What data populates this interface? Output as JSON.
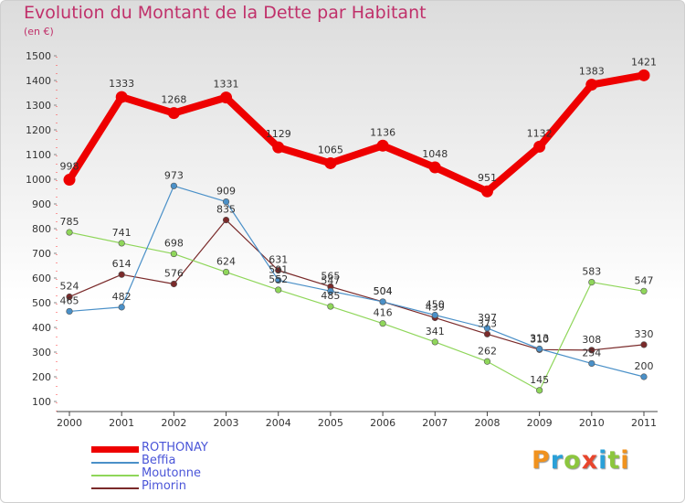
{
  "title": "Evolution du Montant de la Dette par Habitant",
  "subtitle": "(en €)",
  "logo": {
    "text": "Proxiti",
    "colors": [
      "#f0921e",
      "#2aa0d8",
      "#8cc63e",
      "#e8452c",
      "#2aa0d8",
      "#8cc63e",
      "#f0921e"
    ]
  },
  "chart_data": {
    "type": "line",
    "title": "Evolution du Montant de la Dette par Habitant",
    "subtitle": "(en €)",
    "xlabel": "",
    "ylabel": "",
    "categories": [
      "2000",
      "2001",
      "2002",
      "2003",
      "2004",
      "2005",
      "2006",
      "2007",
      "2008",
      "2009",
      "2010",
      "2011"
    ],
    "ylim": [
      100,
      1500
    ],
    "yticks": [
      100,
      200,
      300,
      400,
      500,
      600,
      700,
      800,
      900,
      1000,
      1100,
      1200,
      1300,
      1400,
      1500
    ],
    "grid": false,
    "legend": "bottom-left",
    "series": [
      {
        "name": "ROTHONAY",
        "color": "#ee0000",
        "values": [
          998,
          1333,
          1268,
          1331,
          1129,
          1065,
          1136,
          1048,
          951,
          1132,
          1383,
          1421
        ]
      },
      {
        "name": "Beffia",
        "color": "#4a90c8",
        "values": [
          465,
          482,
          973,
          909,
          591,
          547,
          504,
          450,
          397,
          313,
          254,
          200
        ]
      },
      {
        "name": "Moutonne",
        "color": "#8fd65a",
        "values": [
          785,
          741,
          698,
          624,
          552,
          485,
          416,
          341,
          262,
          145,
          583,
          547
        ]
      },
      {
        "name": "Pimorin",
        "color": "#7a2a2a",
        "values": [
          524,
          614,
          576,
          835,
          631,
          565,
          504,
          439,
          373,
          310,
          308,
          330
        ]
      }
    ]
  }
}
